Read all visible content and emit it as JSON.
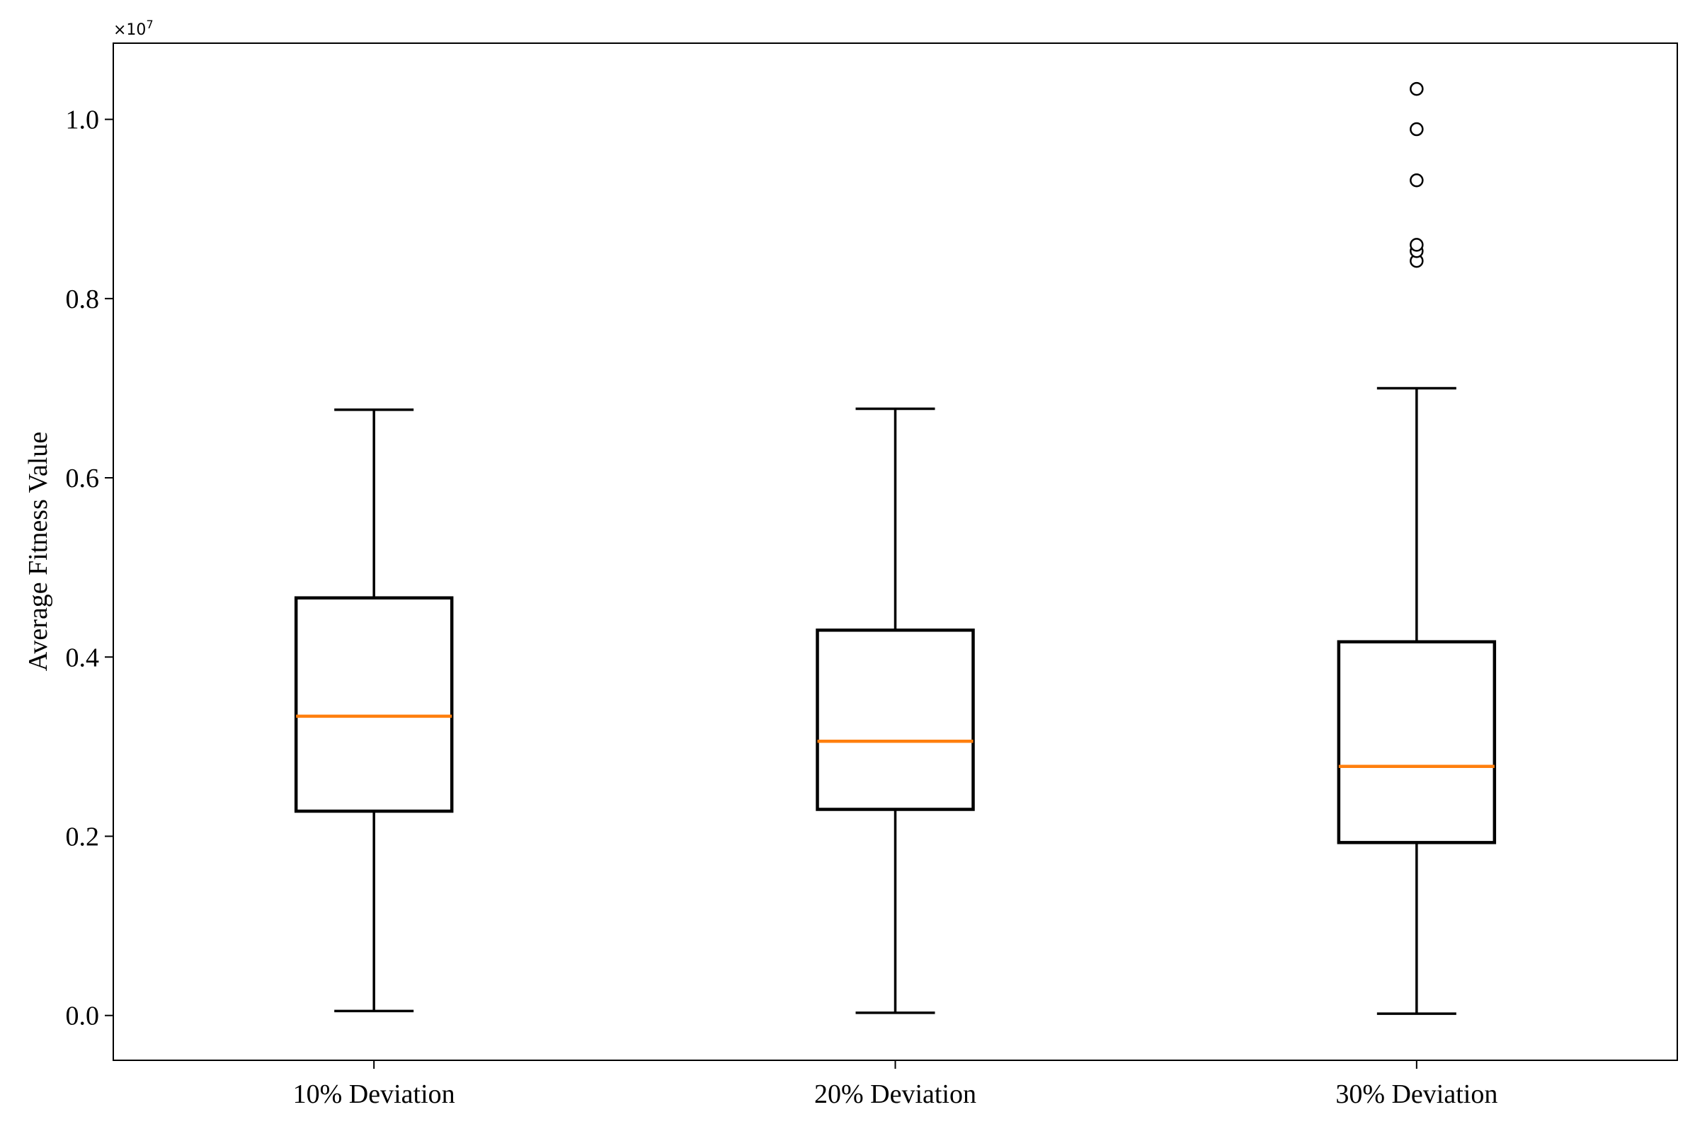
{
  "chart_data": {
    "type": "boxplot",
    "title": "",
    "xlabel": "",
    "ylabel": "Average Fitness Value",
    "y_multiplier_label": "×10",
    "y_multiplier_exponent": "7",
    "y_scale_factor": 10000000,
    "ylim": [
      -0.05,
      1.085
    ],
    "yticks": [
      0.0,
      0.2,
      0.4,
      0.6,
      0.8,
      1.0
    ],
    "ytick_labels": [
      "0.0",
      "0.2",
      "0.4",
      "0.6",
      "0.8",
      "1.0"
    ],
    "grid": false,
    "legend": "none",
    "categories": [
      "10% Deviation",
      "20% Deviation",
      "30% Deviation"
    ],
    "boxes": [
      {
        "label": "10% Deviation",
        "whisker_low": 0.005,
        "q1": 0.228,
        "median": 0.334,
        "q3": 0.466,
        "whisker_high": 0.676,
        "outliers": []
      },
      {
        "label": "20% Deviation",
        "whisker_low": 0.003,
        "q1": 0.23,
        "median": 0.306,
        "q3": 0.43,
        "whisker_high": 0.677,
        "outliers": []
      },
      {
        "label": "30% Deviation",
        "whisker_low": 0.002,
        "q1": 0.193,
        "median": 0.278,
        "q3": 0.417,
        "whisker_high": 0.7,
        "outliers": [
          0.842,
          0.853,
          0.86,
          0.932,
          0.989,
          1.034
        ]
      }
    ],
    "colors": {
      "box": "#000000",
      "median": "#ff7f0e",
      "axes": "#000000",
      "outlier_fill": "#ffffff"
    }
  }
}
